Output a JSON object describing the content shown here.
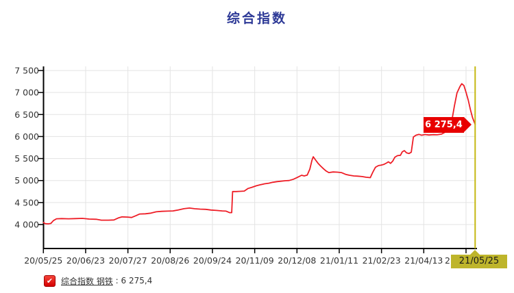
{
  "title": "综合指数",
  "colors": {
    "title": "#2e3a97",
    "series_line": "#ee1c25",
    "badge_bg": "#e80000",
    "badge_text": "#ffffff",
    "cursor_yellow": "#c5b811",
    "cursor_label_bg": "#beb52b",
    "gridline": "#e3e3e3",
    "axis": "#000000",
    "tick_text": "#333333"
  },
  "cursor": {
    "x_label": "21/05/25",
    "value_label": "6 275,4"
  },
  "legend": {
    "checkmark": "✔",
    "name": "综合指数 钢铁",
    "separator": " : ",
    "value": "6 275,4"
  },
  "chart_data": {
    "type": "line",
    "title": "综合指数",
    "xlabel": "",
    "ylabel": "",
    "grid": true,
    "legend_position": "bottom-left",
    "y_axis": {
      "min": 4000,
      "max": 7500,
      "step": 500,
      "tick_labels": [
        "7 500",
        "7 000",
        "6 500",
        "6 000",
        "5 500",
        "5 000",
        "4 500",
        "4 000"
      ],
      "tick_values": [
        7500,
        7000,
        6500,
        6000,
        5500,
        5000,
        4500,
        4000
      ]
    },
    "x_axis": {
      "tick_labels": [
        "20/05/25",
        "20/06/23",
        "20/07/27",
        "20/08/26",
        "20/09/24",
        "20/11/09",
        "20/12/08",
        "21/01/11",
        "21/02/23",
        "21/04/13"
      ],
      "partial_last_tick_label": "2",
      "highlighted_label": "21/05/25"
    },
    "series": [
      {
        "name": "综合指数 钢铁",
        "color": "#ee1c25",
        "last_value": 6275.4,
        "last_value_label": "6 275,4",
        "points": [
          [
            0,
            4046
          ],
          [
            0.004,
            4020
          ],
          [
            0.011,
            4015
          ],
          [
            0.017,
            4025
          ],
          [
            0.023,
            4090
          ],
          [
            0.03,
            4130
          ],
          [
            0.042,
            4135
          ],
          [
            0.058,
            4130
          ],
          [
            0.074,
            4135
          ],
          [
            0.09,
            4140
          ],
          [
            0.106,
            4125
          ],
          [
            0.122,
            4120
          ],
          [
            0.134,
            4100
          ],
          [
            0.15,
            4100
          ],
          [
            0.163,
            4105
          ],
          [
            0.173,
            4150
          ],
          [
            0.182,
            4175
          ],
          [
            0.195,
            4170
          ],
          [
            0.204,
            4160
          ],
          [
            0.214,
            4200
          ],
          [
            0.223,
            4240
          ],
          [
            0.236,
            4245
          ],
          [
            0.249,
            4260
          ],
          [
            0.261,
            4290
          ],
          [
            0.274,
            4300
          ],
          [
            0.287,
            4305
          ],
          [
            0.3,
            4310
          ],
          [
            0.312,
            4330
          ],
          [
            0.325,
            4360
          ],
          [
            0.338,
            4375
          ],
          [
            0.35,
            4360
          ],
          [
            0.363,
            4350
          ],
          [
            0.376,
            4345
          ],
          [
            0.388,
            4330
          ],
          [
            0.401,
            4320
          ],
          [
            0.414,
            4310
          ],
          [
            0.423,
            4305
          ],
          [
            0.431,
            4270
          ],
          [
            0.436,
            4270
          ],
          [
            0.438,
            4750
          ],
          [
            0.446,
            4750
          ],
          [
            0.455,
            4755
          ],
          [
            0.465,
            4760
          ],
          [
            0.474,
            4820
          ],
          [
            0.484,
            4850
          ],
          [
            0.493,
            4880
          ],
          [
            0.503,
            4905
          ],
          [
            0.512,
            4925
          ],
          [
            0.522,
            4940
          ],
          [
            0.531,
            4960
          ],
          [
            0.541,
            4975
          ],
          [
            0.55,
            4985
          ],
          [
            0.56,
            4995
          ],
          [
            0.569,
            5000
          ],
          [
            0.579,
            5030
          ],
          [
            0.588,
            5070
          ],
          [
            0.598,
            5120
          ],
          [
            0.604,
            5105
          ],
          [
            0.611,
            5125
          ],
          [
            0.617,
            5260
          ],
          [
            0.622,
            5460
          ],
          [
            0.625,
            5540
          ],
          [
            0.63,
            5470
          ],
          [
            0.636,
            5390
          ],
          [
            0.642,
            5330
          ],
          [
            0.649,
            5265
          ],
          [
            0.655,
            5215
          ],
          [
            0.661,
            5180
          ],
          [
            0.671,
            5195
          ],
          [
            0.681,
            5190
          ],
          [
            0.69,
            5180
          ],
          [
            0.7,
            5140
          ],
          [
            0.709,
            5120
          ],
          [
            0.719,
            5105
          ],
          [
            0.728,
            5100
          ],
          [
            0.738,
            5090
          ],
          [
            0.747,
            5075
          ],
          [
            0.757,
            5065
          ],
          [
            0.763,
            5190
          ],
          [
            0.769,
            5300
          ],
          [
            0.776,
            5340
          ],
          [
            0.782,
            5350
          ],
          [
            0.788,
            5365
          ],
          [
            0.795,
            5400
          ],
          [
            0.799,
            5425
          ],
          [
            0.804,
            5390
          ],
          [
            0.809,
            5440
          ],
          [
            0.814,
            5530
          ],
          [
            0.82,
            5565
          ],
          [
            0.827,
            5575
          ],
          [
            0.831,
            5650
          ],
          [
            0.836,
            5680
          ],
          [
            0.841,
            5630
          ],
          [
            0.847,
            5615
          ],
          [
            0.852,
            5645
          ],
          [
            0.857,
            5990
          ],
          [
            0.863,
            6030
          ],
          [
            0.87,
            6048
          ],
          [
            0.876,
            6030
          ],
          [
            0.884,
            6045
          ],
          [
            0.893,
            6035
          ],
          [
            0.903,
            6042
          ],
          [
            0.912,
            6040
          ],
          [
            0.922,
            6055
          ],
          [
            0.931,
            6100
          ],
          [
            0.939,
            6175
          ],
          [
            0.946,
            6360
          ],
          [
            0.952,
            6700
          ],
          [
            0.958,
            6990
          ],
          [
            0.965,
            7140
          ],
          [
            0.969,
            7200
          ],
          [
            0.974,
            7160
          ],
          [
            0.979,
            7000
          ],
          [
            0.984,
            6830
          ],
          [
            0.989,
            6610
          ],
          [
            0.994,
            6430
          ],
          [
            1,
            6275.4
          ]
        ]
      }
    ]
  }
}
